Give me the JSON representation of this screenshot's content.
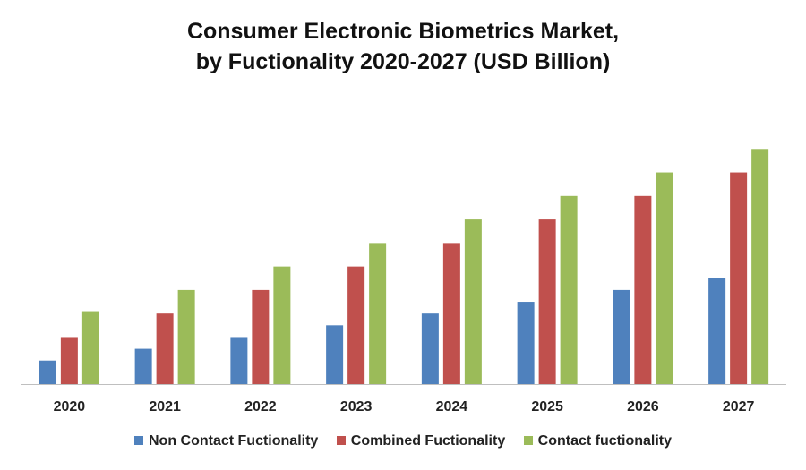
{
  "chart_data": {
    "type": "bar",
    "title_lines": [
      "Consumer Electronic Biometrics Market,",
      "by Fuctionality 2020-2027 (USD Billion)"
    ],
    "categories": [
      "2020",
      "2021",
      "2022",
      "2023",
      "2024",
      "2025",
      "2026",
      "2027"
    ],
    "series": [
      {
        "name": "Non Contact Fuctionality",
        "color": "#4f81bd",
        "values": [
          1.0,
          1.5,
          2.0,
          2.5,
          3.0,
          3.5,
          4.0,
          4.5
        ]
      },
      {
        "name": "Combined Fuctionality",
        "color": "#c0504d",
        "values": [
          2.0,
          3.0,
          4.0,
          5.0,
          6.0,
          7.0,
          8.0,
          9.0
        ]
      },
      {
        "name": "Contact fuctionality",
        "color": "#9bbb59",
        "values": [
          3.1,
          4.0,
          5.0,
          6.0,
          7.0,
          8.0,
          9.0,
          10.0
        ]
      }
    ],
    "ylim": [
      0,
      11
    ],
    "grid": false,
    "legend_position": "bottom"
  }
}
